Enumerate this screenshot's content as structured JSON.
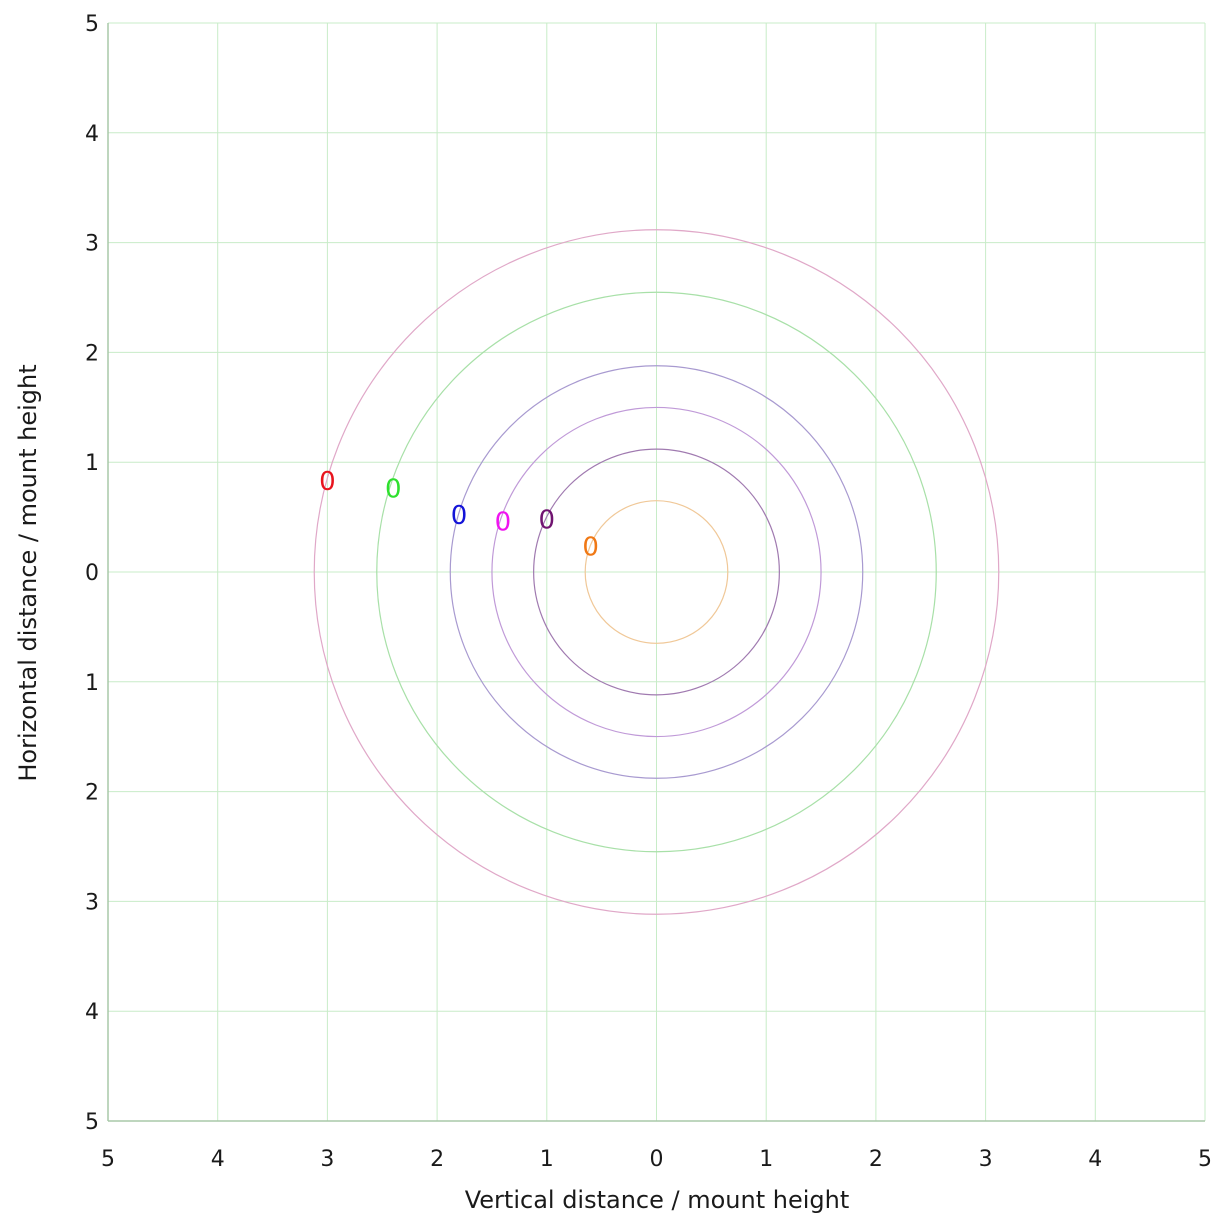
{
  "chart_data": {
    "type": "scatter",
    "title": "",
    "xlabel": "Vertical distance / mount height",
    "ylabel": "Horizontal distance / mount height",
    "xlim": [
      -5,
      5
    ],
    "ylim": [
      -5,
      5
    ],
    "x_tick_values": [
      -5,
      -4,
      -3,
      -2,
      -1,
      0,
      1,
      2,
      3,
      4,
      5
    ],
    "x_tick_labels": [
      "5",
      "4",
      "3",
      "2",
      "1",
      "0",
      "1",
      "2",
      "3",
      "4",
      "5"
    ],
    "y_tick_values": [
      5,
      4,
      3,
      2,
      1,
      0,
      -1,
      -2,
      -3,
      -4,
      -5
    ],
    "y_tick_labels": [
      "5",
      "4",
      "3",
      "2",
      "1",
      "0",
      "1",
      "2",
      "3",
      "4",
      "5"
    ],
    "grid": true,
    "colors": {
      "grid": "#c8ecc8",
      "axis": "#a8c8a8"
    },
    "circles": [
      {
        "radius": 0.65,
        "color": "#f0c898"
      },
      {
        "radius": 1.12,
        "color": "#a07ab0"
      },
      {
        "radius": 1.5,
        "color": "#c09ad8"
      },
      {
        "radius": 1.88,
        "color": "#a89ad0"
      },
      {
        "radius": 2.55,
        "color": "#a8e0a8"
      },
      {
        "radius": 3.12,
        "color": "#e0a8c8"
      }
    ],
    "points": [
      {
        "x": -3.0,
        "y": 0.83,
        "label": "0",
        "color": "#e8141e"
      },
      {
        "x": -2.4,
        "y": 0.76,
        "label": "0",
        "color": "#2ee02e"
      },
      {
        "x": -1.8,
        "y": 0.52,
        "label": "0",
        "color": "#1414d8"
      },
      {
        "x": -1.4,
        "y": 0.46,
        "label": "0",
        "color": "#f014f0"
      },
      {
        "x": -1.0,
        "y": 0.48,
        "label": "0",
        "color": "#701470"
      },
      {
        "x": -0.6,
        "y": 0.23,
        "label": "0",
        "color": "#f07814"
      }
    ]
  }
}
